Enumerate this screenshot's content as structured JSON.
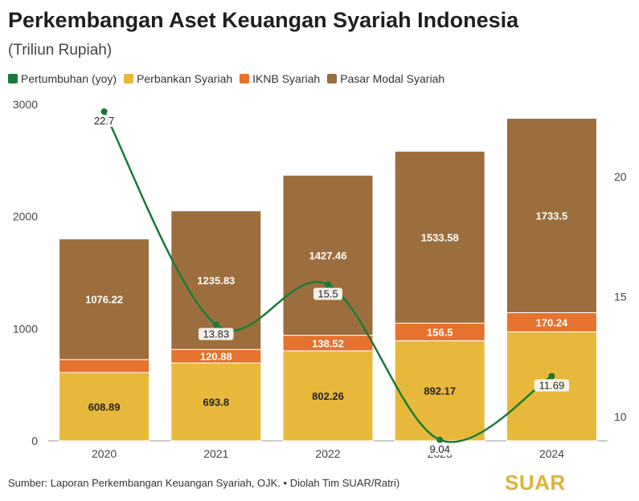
{
  "title": "Perkembangan Aset Keuangan Syariah Indonesia",
  "subtitle": "(Triliun Rupiah)",
  "source": "Sumber: Laporan Perkembangan Keuangan Syariah, OJK. • Diolah Tim SUAR/Ratri)",
  "logo_text": "SUAR",
  "legend": [
    {
      "label": "Pertumbuhan (yoy)",
      "color": "#1a7a3a"
    },
    {
      "label": "Perbankan Syariah",
      "color": "#e8b83a"
    },
    {
      "label": "IKNB Syariah",
      "color": "#e5722d"
    },
    {
      "label": "Pasar Modal Syariah",
      "color": "#9c6e3e"
    }
  ],
  "chart_data": {
    "type": "bar",
    "stacked": true,
    "categories": [
      "2020",
      "2021",
      "2022",
      "2023",
      "2024"
    ],
    "series": [
      {
        "name": "Perbankan Syariah",
        "color": "#e8b83a",
        "values": [
          608.89,
          693.8,
          802.26,
          892.17,
          972.0
        ],
        "labels": [
          "608.89",
          "693.8",
          "802.26",
          "892.17",
          ""
        ]
      },
      {
        "name": "IKNB Syariah",
        "color": "#e5722d",
        "values": [
          115,
          120.88,
          138.52,
          156.5,
          170.24
        ],
        "labels": [
          "",
          "120.88",
          "138.52",
          "156.5",
          "170.24"
        ]
      },
      {
        "name": "Pasar Modal Syariah",
        "color": "#9c6e3e",
        "values": [
          1076.22,
          1235.83,
          1427.46,
          1533.58,
          1733.5
        ],
        "labels": [
          "1076.22",
          "1235.83",
          "1427.46",
          "1533.58",
          "1733.5"
        ]
      }
    ],
    "line": {
      "name": "Pertumbuhan (yoy)",
      "color": "#1a7a3a",
      "values": [
        22.7,
        13.83,
        15.5,
        9.04,
        11.69
      ],
      "labels": [
        "22.7",
        "13.83",
        "15.5",
        "9.04",
        "11.69"
      ]
    },
    "y_left": {
      "min": 0,
      "max": 3000,
      "ticks": [
        "0",
        "1000",
        "2000",
        "3000"
      ]
    },
    "y_right": {
      "min": 9,
      "max": 23,
      "ticks": [
        "10",
        "15",
        "20"
      ]
    },
    "grid": false,
    "legend_position": "top-left"
  }
}
